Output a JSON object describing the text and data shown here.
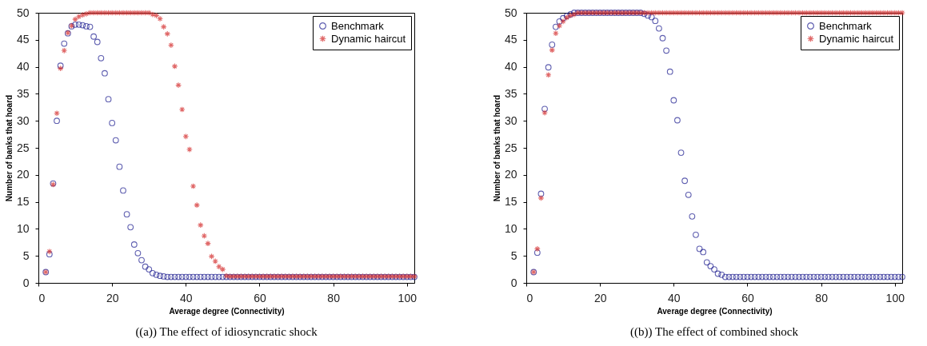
{
  "chart_data": [
    {
      "type": "scatter",
      "title": "((a)) The effect of idiosyncratic shock",
      "xlabel": "Average degree (Connectivity)",
      "ylabel": "Number of banks that hoard",
      "xlim": [
        0,
        102
      ],
      "ylim": [
        0,
        50
      ],
      "xticks": [
        0,
        20,
        40,
        60,
        80,
        100
      ],
      "yticks": [
        0,
        5,
        10,
        15,
        20,
        25,
        30,
        35,
        40,
        45,
        50
      ],
      "grid": false,
      "legend": "top right",
      "x": [
        2,
        3,
        4,
        5,
        6,
        7,
        8,
        9,
        10,
        11,
        12,
        13,
        14,
        15,
        16,
        17,
        18,
        19,
        20,
        21,
        22,
        23,
        24,
        25,
        26,
        27,
        28,
        29,
        30,
        31,
        32,
        33,
        34,
        35,
        36,
        37,
        38,
        39,
        40,
        41,
        42,
        43,
        44,
        45,
        46,
        47,
        48,
        49,
        50,
        51,
        52,
        53,
        54,
        55,
        56,
        57,
        58,
        59,
        60,
        61,
        62,
        63,
        64,
        65,
        66,
        67,
        68,
        69,
        70,
        71,
        72,
        73,
        74,
        75,
        76,
        77,
        78,
        79,
        80,
        81,
        82,
        83,
        84,
        85,
        86,
        87,
        88,
        89,
        90,
        91,
        92,
        93,
        94,
        95,
        96,
        97,
        98,
        99,
        100,
        101,
        102
      ],
      "series": [
        {
          "name": "Benchmark",
          "color": "#1c1c8f",
          "marker": "circle",
          "values": [
            2,
            5.3,
            18.4,
            30,
            40.2,
            44.3,
            46.2,
            47.5,
            47.8,
            47.8,
            47.7,
            47.5,
            47.4,
            45.6,
            44.6,
            41.6,
            38.8,
            34,
            29.6,
            26.4,
            21.5,
            17.1,
            12.7,
            10.3,
            7.1,
            5.5,
            4.2,
            3,
            2.5,
            1.8,
            1.5,
            1.3,
            1.2,
            1.1,
            1.1,
            1.1,
            1.1,
            1.1,
            1.1,
            1.1,
            1.1,
            1.1,
            1.1,
            1.1,
            1.1,
            1.1,
            1.1,
            1.1,
            1.1,
            1.1,
            1.1,
            1.1,
            1.1,
            1.1,
            1.1,
            1.1,
            1.1,
            1.1,
            1.1,
            1.1,
            1.1,
            1.1,
            1.1,
            1.1,
            1.1,
            1.1,
            1.1,
            1.1,
            1.1,
            1.1,
            1.1,
            1.1,
            1.1,
            1.1,
            1.1,
            1.1,
            1.1,
            1.1,
            1.1,
            1.1,
            1.1,
            1.1,
            1.1,
            1.1,
            1.1,
            1.1,
            1.1,
            1.1,
            1.1,
            1.1,
            1.1,
            1.1,
            1.1,
            1.1,
            1.1,
            1.1,
            1.1,
            1.1,
            1.1,
            1.1,
            1.1
          ]
        },
        {
          "name": "Dynamic haircut",
          "color": "#d42a2a",
          "marker": "cross",
          "values": [
            2,
            5.8,
            18.2,
            31.4,
            39.7,
            43,
            46.3,
            47.6,
            48.8,
            49.3,
            49.6,
            49.8,
            50,
            50,
            50,
            50,
            50,
            50,
            50,
            50,
            50,
            50,
            50,
            50,
            50,
            50,
            50,
            50,
            50,
            49.7,
            49.5,
            48.9,
            47.4,
            46.1,
            44,
            40.1,
            36.6,
            32.1,
            27.1,
            24.7,
            17.9,
            14.4,
            10.7,
            8.7,
            7.3,
            4.9,
            4,
            3,
            2.5,
            1.3,
            1.2,
            1.2,
            1.2,
            1.2,
            1.2,
            1.2,
            1.2,
            1.2,
            1.2,
            1.2,
            1.2,
            1.2,
            1.2,
            1.2,
            1.2,
            1.2,
            1.2,
            1.2,
            1.2,
            1.2,
            1.2,
            1.2,
            1.2,
            1.2,
            1.2,
            1.2,
            1.2,
            1.2,
            1.2,
            1.2,
            1.2,
            1.2,
            1.2,
            1.2,
            1.2,
            1.2,
            1.2,
            1.2,
            1.2,
            1.2,
            1.2,
            1.2,
            1.2,
            1.2,
            1.2,
            1.2,
            1.2,
            1.2,
            1.2,
            1.2,
            1.2
          ]
        }
      ]
    },
    {
      "type": "scatter",
      "title": "((b)) The effect of combined shock",
      "xlabel": "Average degree (Connectivity)",
      "ylabel": "Number of banks that hoard",
      "xlim": [
        0,
        102
      ],
      "ylim": [
        0,
        50
      ],
      "xticks": [
        0,
        20,
        40,
        60,
        80,
        100
      ],
      "yticks": [
        0,
        5,
        10,
        15,
        20,
        25,
        30,
        35,
        40,
        45,
        50
      ],
      "grid": false,
      "legend": "top right",
      "x": [
        2,
        3,
        4,
        5,
        6,
        7,
        8,
        9,
        10,
        11,
        12,
        13,
        14,
        15,
        16,
        17,
        18,
        19,
        20,
        21,
        22,
        23,
        24,
        25,
        26,
        27,
        28,
        29,
        30,
        31,
        32,
        33,
        34,
        35,
        36,
        37,
        38,
        39,
        40,
        41,
        42,
        43,
        44,
        45,
        46,
        47,
        48,
        49,
        50,
        51,
        52,
        53,
        54,
        55,
        56,
        57,
        58,
        59,
        60,
        61,
        62,
        63,
        64,
        65,
        66,
        67,
        68,
        69,
        70,
        71,
        72,
        73,
        74,
        75,
        76,
        77,
        78,
        79,
        80,
        81,
        82,
        83,
        84,
        85,
        86,
        87,
        88,
        89,
        90,
        91,
        92,
        93,
        94,
        95,
        96,
        97,
        98,
        99,
        100,
        101,
        102
      ],
      "series": [
        {
          "name": "Benchmark",
          "color": "#1c1c8f",
          "marker": "circle",
          "values": [
            2,
            5.6,
            16.5,
            32.2,
            39.9,
            44.1,
            47.4,
            48.4,
            49,
            49.4,
            49.7,
            50,
            50,
            50,
            50,
            50,
            50,
            50,
            50,
            50,
            50,
            50,
            50,
            50,
            50,
            50,
            50,
            50,
            50,
            50,
            49.8,
            49.5,
            49.2,
            48.5,
            47.1,
            45.3,
            43,
            39.1,
            33.8,
            30.1,
            24.1,
            18.9,
            16.3,
            12.3,
            8.9,
            6.3,
            5.7,
            3.8,
            3.1,
            2.5,
            1.7,
            1.5,
            1.1,
            1.1,
            1.1,
            1.1,
            1.1,
            1.1,
            1.1,
            1.1,
            1.1,
            1.1,
            1.1,
            1.1,
            1.1,
            1.1,
            1.1,
            1.1,
            1.1,
            1.1,
            1.1,
            1.1,
            1.1,
            1.1,
            1.1,
            1.1,
            1.1,
            1.1,
            1.1,
            1.1,
            1.1,
            1.1,
            1.1,
            1.1,
            1.1,
            1.1,
            1.1,
            1.1,
            1.1,
            1.1,
            1.1,
            1.1,
            1.1,
            1.1,
            1.1,
            1.1,
            1.1,
            1.1,
            1.1,
            1.1,
            1.1
          ]
        },
        {
          "name": "Dynamic haircut",
          "color": "#d42a2a",
          "marker": "cross",
          "values": [
            2,
            6.3,
            15.7,
            31.5,
            38.5,
            43.1,
            46.2,
            47.6,
            48.4,
            49.1,
            49.5,
            49.7,
            50,
            50,
            50,
            50,
            50,
            50,
            50,
            50,
            50,
            50,
            50,
            50,
            50,
            50,
            50,
            50,
            50,
            50,
            50,
            50,
            50,
            50,
            50,
            50,
            50,
            50,
            50,
            50,
            50,
            50,
            50,
            50,
            50,
            50,
            50,
            50,
            50,
            50,
            50,
            50,
            50,
            50,
            50,
            50,
            50,
            50,
            50,
            50,
            50,
            50,
            50,
            50,
            50,
            50,
            50,
            50,
            50,
            50,
            50,
            50,
            50,
            50,
            50,
            50,
            50,
            50,
            50,
            50,
            50,
            50,
            50,
            50,
            50,
            50,
            50,
            50,
            50,
            50,
            50,
            50,
            50,
            50,
            50,
            50,
            50,
            50,
            50,
            50,
            50
          ]
        }
      ]
    }
  ]
}
